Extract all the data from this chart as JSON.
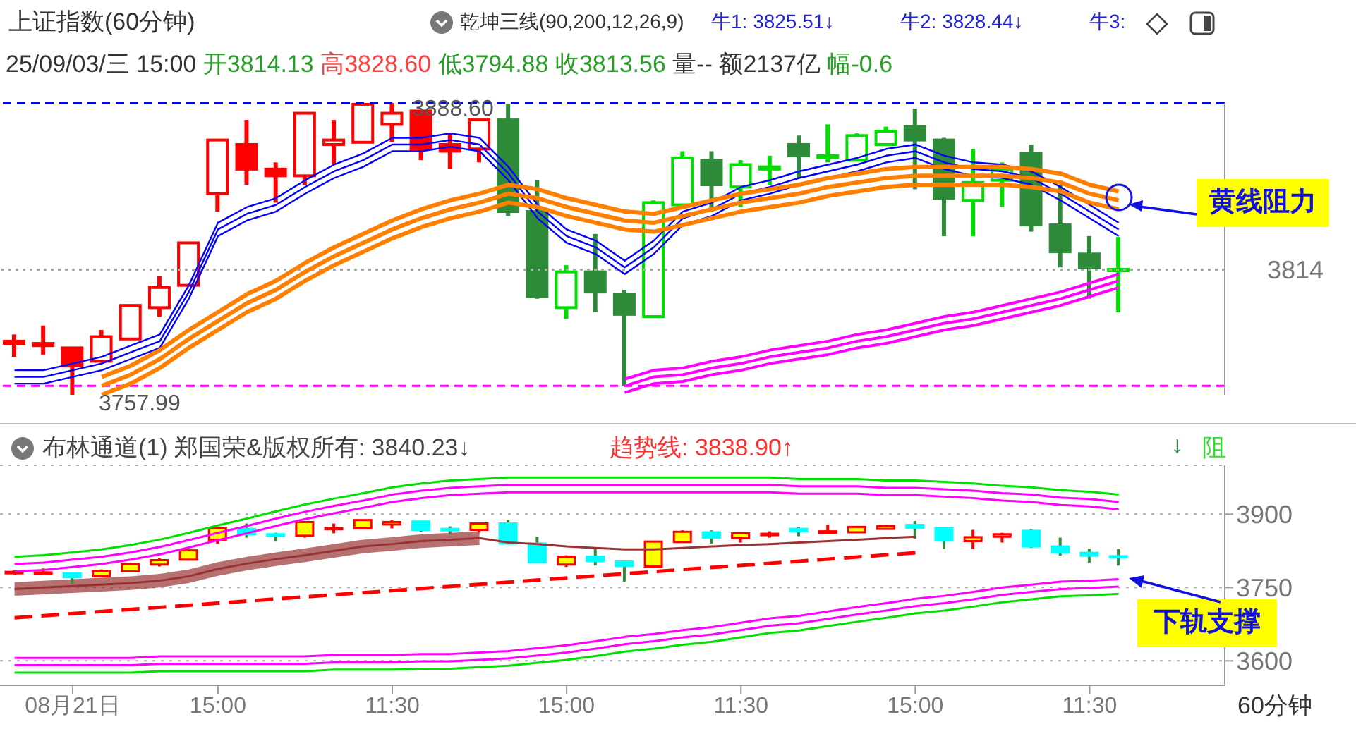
{
  "chart_data": [
    {
      "type": "candlestick",
      "title": "上证指数(60分钟)",
      "subtitle": "25/09/03/三 15:00 开3814.13 高3828.60 低3794.88 收3813.56 量-- 额2137亿 幅-0.6",
      "categories": [
        null,
        null,
        null,
        null,
        null,
        null,
        null,
        null,
        null,
        null,
        null,
        null,
        null,
        null,
        null,
        null,
        null,
        null,
        null,
        null,
        null,
        null,
        null,
        null,
        null,
        null,
        null,
        null,
        null,
        null,
        null,
        null,
        null,
        null,
        null,
        null,
        null,
        null,
        null
      ],
      "ohlc": [
        [
          3781,
          3785,
          3775,
          3782
        ],
        [
          3780,
          3789,
          3776,
          3781
        ],
        [
          3779,
          3779,
          3757.99,
          3771
        ],
        [
          3773,
          3787,
          3773,
          3784
        ],
        [
          3783,
          3798,
          3783,
          3798
        ],
        [
          3797,
          3811,
          3793,
          3806
        ],
        [
          3807,
          3826,
          3807,
          3826
        ],
        [
          3848,
          3872,
          3840,
          3872
        ],
        [
          3870,
          3881,
          3852,
          3859
        ],
        [
          3859,
          3862,
          3844,
          3856
        ],
        [
          3856,
          3884,
          3852,
          3884
        ],
        [
          3870,
          3881,
          3861,
          3872
        ],
        [
          3871,
          3888,
          3871,
          3888
        ],
        [
          3879,
          3888.6,
          3871,
          3884
        ],
        [
          3885,
          3885,
          3863,
          3868
        ],
        [
          3870,
          3875,
          3859,
          3867
        ],
        [
          3868,
          3881,
          3862,
          3881
        ],
        [
          3881,
          3888,
          3838,
          3840
        ],
        [
          3840,
          3854,
          3801,
          3802
        ],
        [
          3797,
          3816,
          3792,
          3813
        ],
        [
          3813,
          3830,
          3795,
          3804
        ],
        [
          3803,
          3805,
          3762,
          3794
        ],
        [
          3793,
          3845,
          3793,
          3844
        ],
        [
          3843,
          3867,
          3843,
          3864
        ],
        [
          3863,
          3867,
          3840,
          3852
        ],
        [
          3851,
          3863,
          3842,
          3861
        ],
        [
          3859,
          3865,
          3852,
          3860
        ],
        [
          3870,
          3874,
          3855,
          3865
        ],
        [
          3864,
          3879,
          3862,
          3865
        ],
        [
          3863,
          3875,
          3863,
          3874
        ],
        [
          3870,
          3878,
          3870,
          3876
        ],
        [
          3878,
          3886,
          3850,
          3872
        ],
        [
          3872,
          3873,
          3829,
          3846
        ],
        [
          3845,
          3868,
          3829,
          3853
        ],
        [
          3854,
          3862,
          3842,
          3859
        ],
        [
          3866,
          3870,
          3831,
          3834
        ],
        [
          3834,
          3852,
          3815,
          3822
        ],
        [
          3821,
          3829,
          3801,
          3815
        ],
        [
          3814.13,
          3828.6,
          3794.88,
          3813.56
        ]
      ],
      "colors": [
        "#ff0000",
        "#ff0000",
        "#ff0000",
        "#ff0000",
        "#ff0000",
        "#ff0000",
        "#ff0000",
        "#ff0000",
        "#ff0000",
        "#ff0000",
        "#ff0000",
        "#ff0000",
        "#ff0000",
        "#ff0000",
        "#ff0000",
        "#ff0000",
        "#ff0000",
        "#2e8b3a",
        "#2e8b3a",
        "#00dd00",
        "#2e8b3a",
        "#2e8b3a",
        "#00dd00",
        "#00dd00",
        "#2e8b3a",
        "#00dd00",
        "#00dd00",
        "#2e8b3a",
        "#00dd00",
        "#00dd00",
        "#00dd00",
        "#2e8b3a",
        "#2e8b3a",
        "#00dd00",
        "#00dd00",
        "#2e8b3a",
        "#2e8b3a",
        "#2e8b3a",
        "#00dd00"
      ],
      "series": [
        {
          "type": "line",
          "color": "#0000ff",
          "values": [
            3769,
            3769,
            3772,
            3775,
            3780,
            3785,
            3807,
            3835,
            3842,
            3846,
            3854,
            3861,
            3866,
            3873,
            3873,
            3875,
            3873,
            3860,
            3843,
            3832,
            3827,
            3818,
            3827,
            3840,
            3844,
            3851,
            3854,
            3858,
            3861,
            3864,
            3868,
            3870,
            3865,
            3862,
            3861,
            3858,
            3851,
            3843,
            3835
          ]
        },
        {
          "type": "line",
          "color": "#0000ff",
          "values": [
            3766,
            3766,
            3769,
            3772,
            3777,
            3782,
            3804,
            3832,
            3839,
            3843,
            3851,
            3858,
            3863,
            3870,
            3870,
            3872,
            3870,
            3857,
            3840,
            3829,
            3824,
            3815,
            3824,
            3837,
            3841,
            3848,
            3851,
            3855,
            3858,
            3861,
            3865,
            3867,
            3862,
            3859,
            3858,
            3855,
            3848,
            3840,
            3832
          ]
        },
        {
          "type": "line",
          "color": "#0000ff",
          "values": [
            3763,
            3763,
            3766,
            3769,
            3774,
            3779,
            3801,
            3829,
            3836,
            3840,
            3848,
            3855,
            3860,
            3867,
            3867,
            3869,
            3867,
            3854,
            3837,
            3826,
            3821,
            3812,
            3821,
            3834,
            3838,
            3845,
            3848,
            3852,
            3855,
            3858,
            3862,
            3864,
            3859,
            3856,
            3855,
            3852,
            3845,
            3837,
            3829
          ]
        },
        {
          "type": "line",
          "color": "#ff8000",
          "values": [
            null,
            null,
            null,
            3766,
            3771,
            3778,
            3787,
            3795,
            3803,
            3809,
            3817,
            3824,
            3830,
            3836,
            3841,
            3845,
            3848,
            3852,
            3850,
            3846,
            3843,
            3840,
            3839,
            3842,
            3845,
            3848,
            3850,
            3852,
            3855,
            3857,
            3859,
            3860,
            3860,
            3860,
            3860,
            3859,
            3857,
            3852,
            3849
          ]
        },
        {
          "type": "line",
          "color": "#ff8000",
          "values": [
            null,
            null,
            null,
            3762,
            3767,
            3774,
            3783,
            3791,
            3799,
            3805,
            3813,
            3820,
            3826,
            3832,
            3837,
            3841,
            3844,
            3848,
            3846,
            3842,
            3839,
            3836,
            3835,
            3838,
            3841,
            3844,
            3846,
            3848,
            3851,
            3853,
            3855,
            3856,
            3856,
            3856,
            3856,
            3855,
            3853,
            3848,
            3845
          ]
        },
        {
          "type": "line",
          "color": "#ff8000",
          "values": [
            null,
            null,
            null,
            3758,
            3763,
            3770,
            3779,
            3787,
            3795,
            3801,
            3809,
            3816,
            3822,
            3828,
            3833,
            3837,
            3840,
            3844,
            3842,
            3838,
            3835,
            3832,
            3831,
            3834,
            3837,
            3840,
            3842,
            3844,
            3847,
            3849,
            3851,
            3852,
            3852,
            3852,
            3852,
            3851,
            3849,
            3844,
            3841
          ]
        },
        {
          "type": "line",
          "color": "#ff00ff",
          "values": [
            null,
            null,
            null,
            null,
            null,
            null,
            null,
            null,
            null,
            null,
            null,
            null,
            null,
            null,
            null,
            null,
            null,
            null,
            null,
            null,
            null,
            3765,
            3769,
            3770,
            3773,
            3775,
            3778,
            3780,
            3782,
            3785,
            3787,
            3790,
            3793,
            3795,
            3798,
            3801,
            3804,
            3808,
            3812
          ]
        },
        {
          "type": "line",
          "color": "#ff00ff",
          "values": [
            null,
            null,
            null,
            null,
            null,
            null,
            null,
            null,
            null,
            null,
            null,
            null,
            null,
            null,
            null,
            null,
            null,
            null,
            null,
            null,
            null,
            3762,
            3766,
            3767,
            3770,
            3772,
            3775,
            3777,
            3779,
            3782,
            3784,
            3787,
            3790,
            3792,
            3795,
            3798,
            3801,
            3805,
            3809
          ]
        },
        {
          "type": "line",
          "color": "#ff00ff",
          "values": [
            null,
            null,
            null,
            null,
            null,
            null,
            null,
            null,
            null,
            null,
            null,
            null,
            null,
            null,
            null,
            null,
            null,
            null,
            null,
            null,
            null,
            3759,
            3763,
            3764,
            3767,
            3769,
            3772,
            3774,
            3776,
            3779,
            3781,
            3784,
            3787,
            3789,
            3792,
            3795,
            3798,
            3802,
            3806
          ]
        }
      ],
      "tick_labels": false,
      "ref_lines": [
        {
          "axis": "y",
          "value": 3814,
          "label": "3814",
          "color": "#aaaaaa",
          "line_style": "dotted"
        },
        {
          "axis": "y",
          "value": 3888.6,
          "color": "#0000ff",
          "line_style": "dashed"
        },
        {
          "axis": "y",
          "value": 3762,
          "color": "#ff00ff",
          "line_style": "dashed"
        }
      ],
      "annotations": [
        "乾坤三线(90,200,12,26,9)",
        "牛1: 3825.51↓",
        "牛2: 3828.44↓",
        "牛3:",
        "黄线阻力",
        {
          "text": "3888.60",
          "y": 3888.6
        },
        "3757.99"
      ]
    },
    {
      "type": "candlestick",
      "title": "布林通道(1) 郑国荣&版权所有: 3840.23↓",
      "xlabel": "60分钟",
      "categories": [
        null,
        null,
        "08月21日",
        null,
        null,
        null,
        null,
        "15:00",
        null,
        null,
        null,
        null,
        null,
        "11:30",
        null,
        null,
        null,
        null,
        null,
        "15:00",
        null,
        null,
        null,
        null,
        null,
        "11:30",
        null,
        null,
        null,
        null,
        null,
        "15:00",
        null,
        null,
        null,
        null,
        null,
        "11:30",
        null
      ],
      "ohlc": [
        [
          3781,
          3785,
          3775,
          3782
        ],
        [
          3780,
          3789,
          3776,
          3781
        ],
        [
          3779,
          3779,
          3757.99,
          3771
        ],
        [
          3773,
          3787,
          3773,
          3784
        ],
        [
          3783,
          3798,
          3783,
          3798
        ],
        [
          3797,
          3811,
          3793,
          3806
        ],
        [
          3807,
          3826,
          3807,
          3826
        ],
        [
          3848,
          3872,
          3840,
          3872
        ],
        [
          3870,
          3881,
          3852,
          3859
        ],
        [
          3859,
          3862,
          3844,
          3856
        ],
        [
          3856,
          3884,
          3852,
          3884
        ],
        [
          3870,
          3881,
          3861,
          3872
        ],
        [
          3871,
          3888,
          3871,
          3888
        ],
        [
          3879,
          3888.6,
          3871,
          3884
        ],
        [
          3885,
          3885,
          3863,
          3868
        ],
        [
          3870,
          3875,
          3859,
          3867
        ],
        [
          3868,
          3881,
          3862,
          3881
        ],
        [
          3881,
          3888,
          3838,
          3840
        ],
        [
          3840,
          3854,
          3801,
          3802
        ],
        [
          3797,
          3816,
          3792,
          3813
        ],
        [
          3813,
          3830,
          3795,
          3804
        ],
        [
          3803,
          3805,
          3762,
          3794
        ],
        [
          3793,
          3845,
          3793,
          3844
        ],
        [
          3843,
          3867,
          3843,
          3864
        ],
        [
          3863,
          3867,
          3840,
          3852
        ],
        [
          3851,
          3863,
          3842,
          3861
        ],
        [
          3859,
          3865,
          3852,
          3860
        ],
        [
          3870,
          3874,
          3855,
          3865
        ],
        [
          3864,
          3879,
          3862,
          3865
        ],
        [
          3863,
          3875,
          3863,
          3874
        ],
        [
          3870,
          3878,
          3870,
          3876
        ],
        [
          3878,
          3886,
          3850,
          3872
        ],
        [
          3872,
          3873,
          3829,
          3846
        ],
        [
          3845,
          3868,
          3829,
          3853
        ],
        [
          3854,
          3862,
          3842,
          3859
        ],
        [
          3866,
          3870,
          3831,
          3834
        ],
        [
          3834,
          3852,
          3815,
          3822
        ],
        [
          3821,
          3829,
          3801,
          3815
        ],
        [
          3814.13,
          3828.6,
          3794.88,
          3813.56
        ]
      ],
      "colors": [
        "#ffff00",
        "#ffff00",
        "#00ffff",
        "#ffff00",
        "#ffff00",
        "#ffff00",
        "#ffff00",
        "#ffff00",
        "#00ffff",
        "#00ffff",
        "#ffff00",
        "#ffff00",
        "#ffff00",
        "#ffff00",
        "#00ffff",
        "#00ffff",
        "#ffff00",
        "#00ffff",
        "#00ffff",
        "#ffff00",
        "#00ffff",
        "#00ffff",
        "#ffff00",
        "#ffff00",
        "#00ffff",
        "#ffff00",
        "#ffff00",
        "#00ffff",
        "#ffff00",
        "#ffff00",
        "#ffff00",
        "#00ffff",
        "#00ffff",
        "#ffff00",
        "#ffff00",
        "#00ffff",
        "#00ffff",
        "#00ffff",
        "#00ffff"
      ],
      "series": [
        {
          "type": "line",
          "color": "#00e000",
          "values": [
            3813,
            3816,
            3822,
            3828,
            3837,
            3848,
            3862,
            3877,
            3891,
            3906,
            3920,
            3932,
            3943,
            3955,
            3963,
            3969,
            3972,
            3975,
            3975,
            3975,
            3975,
            3975,
            3975,
            3975,
            3975,
            3975,
            3975,
            3972,
            3972,
            3972,
            3969,
            3969,
            3966,
            3963,
            3958,
            3955,
            3949,
            3946,
            3940
          ]
        },
        {
          "type": "line",
          "color": "#ff00ff",
          "values": [
            3798,
            3801,
            3807,
            3813,
            3822,
            3833,
            3847,
            3862,
            3876,
            3891,
            3905,
            3917,
            3928,
            3940,
            3948,
            3954,
            3957,
            3960,
            3960,
            3960,
            3960,
            3960,
            3960,
            3960,
            3960,
            3960,
            3960,
            3957,
            3957,
            3957,
            3954,
            3954,
            3951,
            3948,
            3943,
            3940,
            3934,
            3931,
            3925
          ]
        },
        {
          "type": "line",
          "color": "#ff00ff",
          "values": [
            3783,
            3786,
            3792,
            3798,
            3807,
            3818,
            3832,
            3847,
            3861,
            3876,
            3890,
            3902,
            3913,
            3925,
            3933,
            3939,
            3942,
            3945,
            3945,
            3945,
            3945,
            3945,
            3945,
            3945,
            3945,
            3945,
            3945,
            3942,
            3942,
            3942,
            3939,
            3939,
            3936,
            3933,
            3928,
            3925,
            3919,
            3916,
            3910
          ]
        },
        {
          "type": "line",
          "color": "#ff00ff",
          "values": [
            3606,
            3606,
            3606,
            3606,
            3606,
            3609,
            3609,
            3609,
            3609,
            3609,
            3609,
            3612,
            3612,
            3612,
            3614,
            3614,
            3617,
            3620,
            3626,
            3632,
            3640,
            3649,
            3655,
            3663,
            3669,
            3678,
            3687,
            3692,
            3701,
            3710,
            3718,
            3727,
            3733,
            3741,
            3750,
            3756,
            3762,
            3764,
            3767
          ]
        },
        {
          "type": "line",
          "color": "#ff00ff",
          "values": [
            3591,
            3591,
            3591,
            3591,
            3591,
            3594,
            3594,
            3594,
            3594,
            3594,
            3594,
            3597,
            3597,
            3597,
            3599,
            3599,
            3602,
            3605,
            3611,
            3617,
            3625,
            3634,
            3640,
            3648,
            3654,
            3663,
            3672,
            3677,
            3686,
            3695,
            3703,
            3712,
            3718,
            3726,
            3735,
            3741,
            3747,
            3749,
            3752
          ]
        },
        {
          "type": "line",
          "color": "#00e000",
          "values": [
            3576,
            3576,
            3576,
            3576,
            3576,
            3579,
            3579,
            3579,
            3579,
            3579,
            3579,
            3582,
            3582,
            3582,
            3584,
            3584,
            3587,
            3590,
            3596,
            3602,
            3610,
            3619,
            3625,
            3633,
            3639,
            3648,
            3657,
            3662,
            3671,
            3680,
            3688,
            3697,
            3703,
            3711,
            3720,
            3726,
            3732,
            3734,
            3737
          ]
        },
        {
          "type": "line",
          "color": "#993333",
          "values": [
            3747,
            3750,
            3753,
            3756,
            3759,
            3764,
            3773,
            3788,
            3799,
            3808,
            3816,
            3825,
            3834,
            3839,
            3845,
            3848,
            3851,
            3842,
            3839,
            3834,
            3831,
            3828,
            3828,
            3831,
            3834,
            3837,
            3839,
            3842,
            3845,
            3848,
            3851,
            3854,
            null,
            null,
            null,
            null,
            null,
            null,
            null
          ],
          "lower": [
            3733,
            3736,
            3739,
            3742,
            3745,
            3750,
            3759,
            3774,
            3785,
            3794,
            3802,
            3811,
            3820,
            3825,
            3831,
            3834,
            3837,
            null,
            null,
            null,
            null,
            null,
            null,
            null,
            null,
            null,
            null,
            null,
            null,
            null,
            null,
            null,
            null,
            null,
            null,
            null,
            null,
            null,
            null
          ],
          "upper": [
            3761,
            3764,
            3767,
            3770,
            3773,
            3778,
            3787,
            3802,
            3813,
            3822,
            3830,
            3839,
            3848,
            3853,
            3859,
            3862,
            3865,
            null,
            null,
            null,
            null,
            null,
            null,
            null,
            null,
            null,
            null,
            null,
            null,
            null,
            null,
            null,
            null,
            null,
            null,
            null,
            null,
            null,
            null
          ]
        },
        {
          "type": "line",
          "color": "#ff0000",
          "line_style": "dashed",
          "values": [
            3688,
            null,
            null,
            null,
            null,
            null,
            null,
            null,
            null,
            null,
            null,
            null,
            null,
            null,
            null,
            null,
            null,
            null,
            null,
            null,
            null,
            null,
            null,
            null,
            null,
            null,
            null,
            null,
            null,
            null,
            null,
            3821,
            null,
            null,
            null,
            null,
            null,
            null,
            null
          ]
        }
      ],
      "ylim": [
        3550,
        4000
      ],
      "yticks": [
        3600,
        3750,
        3900
      ],
      "grid": "y",
      "annotations": [
        "趋势线: 3838.90↑",
        "↓",
        "阻",
        "下轨支撑"
      ]
    }
  ]
}
